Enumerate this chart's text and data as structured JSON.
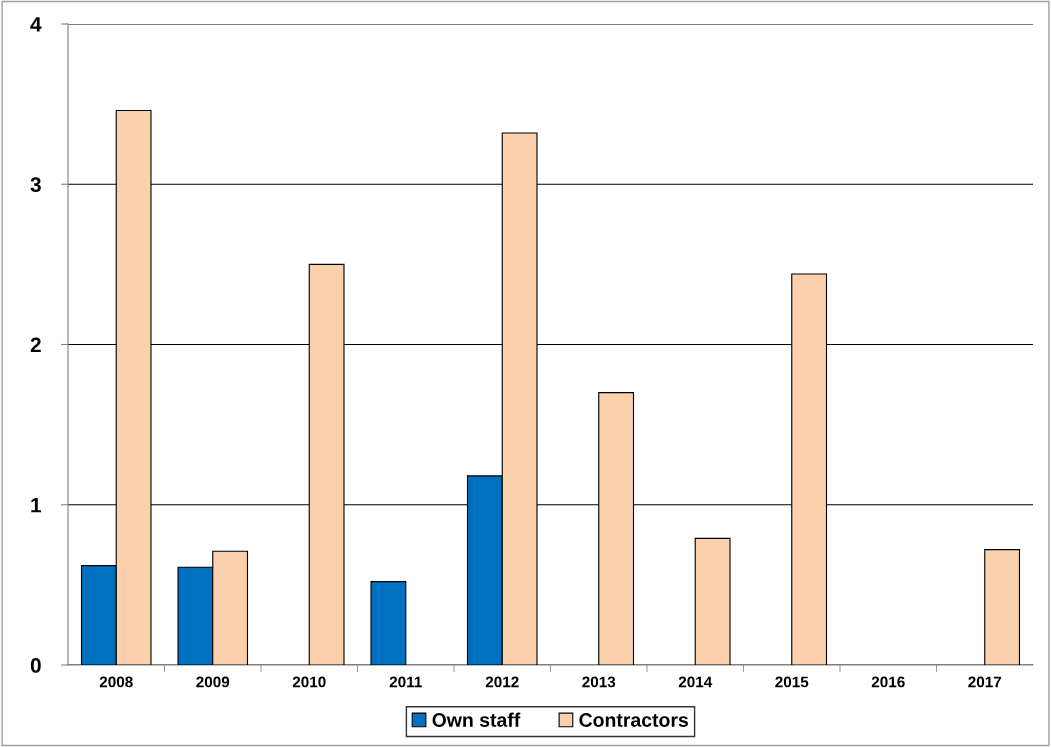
{
  "chart_data": {
    "type": "bar",
    "categories": [
      "2008",
      "2009",
      "2010",
      "2011",
      "2012",
      "2013",
      "2014",
      "2015",
      "2016",
      "2017"
    ],
    "series": [
      {
        "name": "Own staff",
        "color": "#0070c0",
        "values": [
          0.62,
          0.61,
          0,
          0.52,
          1.18,
          0,
          0,
          0,
          0,
          0
        ]
      },
      {
        "name": "Contractors",
        "color": "#fad0ad",
        "values": [
          3.46,
          0.71,
          2.5,
          0,
          3.32,
          1.7,
          0.79,
          2.44,
          0,
          0.72
        ]
      }
    ],
    "ylim": [
      0,
      4
    ],
    "yticks": [
      0,
      1,
      2,
      3,
      4
    ],
    "grid": "y",
    "legend": "bottom"
  }
}
